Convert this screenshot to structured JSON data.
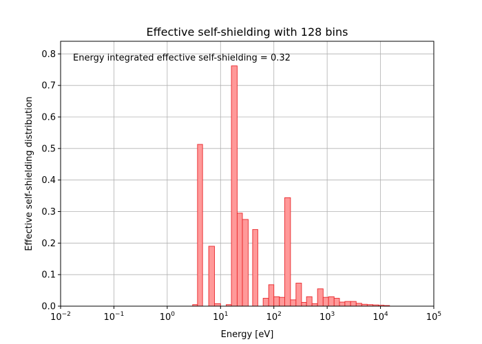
{
  "chart_data": {
    "type": "bar",
    "title": "Effective self-shielding with 128 bins",
    "xlabel": "Energy [eV]",
    "ylabel": "Effective self-shielding distribution",
    "annotation": "Energy integrated effective self-shielding = 0.32",
    "x_scale": "log",
    "xlim": [
      0.01,
      100000
    ],
    "ylim": [
      0,
      0.84
    ],
    "grid": true,
    "x_ticks": [
      {
        "value": 0.01,
        "base": "10",
        "exp": "−2"
      },
      {
        "value": 0.1,
        "base": "10",
        "exp": "−1"
      },
      {
        "value": 1,
        "base": "10",
        "exp": "0"
      },
      {
        "value": 10,
        "base": "10",
        "exp": "1"
      },
      {
        "value": 100,
        "base": "10",
        "exp": "2"
      },
      {
        "value": 1000,
        "base": "10",
        "exp": "3"
      },
      {
        "value": 10000,
        "base": "10",
        "exp": "4"
      },
      {
        "value": 100000,
        "base": "10",
        "exp": "5"
      }
    ],
    "y_ticks": [
      {
        "value": 0.0,
        "label": "0.0"
      },
      {
        "value": 0.1,
        "label": "0.1"
      },
      {
        "value": 0.2,
        "label": "0.2"
      },
      {
        "value": 0.3,
        "label": "0.3"
      },
      {
        "value": 0.4,
        "label": "0.4"
      },
      {
        "value": 0.5,
        "label": "0.5"
      },
      {
        "value": 0.6,
        "label": "0.6"
      },
      {
        "value": 0.7,
        "label": "0.7"
      },
      {
        "value": 0.8,
        "label": "0.8"
      }
    ],
    "bar_fill": "#ff9999",
    "bar_edge": "#e8262a",
    "bins": [
      {
        "lo": 0.01,
        "hi": 3.0,
        "v": 0.0
      },
      {
        "lo": 3.0,
        "hi": 3.7,
        "v": 0.005
      },
      {
        "lo": 3.7,
        "hi": 4.6,
        "v": 0.513
      },
      {
        "lo": 4.6,
        "hi": 6.0,
        "v": 0.0
      },
      {
        "lo": 6.0,
        "hi": 7.7,
        "v": 0.19
      },
      {
        "lo": 7.7,
        "hi": 10.0,
        "v": 0.008
      },
      {
        "lo": 10.0,
        "hi": 12.8,
        "v": 0.0
      },
      {
        "lo": 12.8,
        "hi": 16.0,
        "v": 0.005
      },
      {
        "lo": 16.0,
        "hi": 20.5,
        "v": 0.762
      },
      {
        "lo": 20.5,
        "hi": 25.7,
        "v": 0.295
      },
      {
        "lo": 25.7,
        "hi": 33.0,
        "v": 0.275
      },
      {
        "lo": 33.0,
        "hi": 40.0,
        "v": 0.0
      },
      {
        "lo": 40.0,
        "hi": 50.0,
        "v": 0.243
      },
      {
        "lo": 50.0,
        "hi": 63.0,
        "v": 0.0
      },
      {
        "lo": 63.0,
        "hi": 80.0,
        "v": 0.025
      },
      {
        "lo": 80.0,
        "hi": 100.0,
        "v": 0.068
      },
      {
        "lo": 100.0,
        "hi": 127.0,
        "v": 0.03
      },
      {
        "lo": 127.0,
        "hi": 160.0,
        "v": 0.028
      },
      {
        "lo": 160.0,
        "hi": 205.0,
        "v": 0.344
      },
      {
        "lo": 205.0,
        "hi": 260.0,
        "v": 0.02
      },
      {
        "lo": 260.0,
        "hi": 330.0,
        "v": 0.073
      },
      {
        "lo": 330.0,
        "hi": 410.0,
        "v": 0.012
      },
      {
        "lo": 410.0,
        "hi": 520.0,
        "v": 0.03
      },
      {
        "lo": 520.0,
        "hi": 660.0,
        "v": 0.008
      },
      {
        "lo": 660.0,
        "hi": 840.0,
        "v": 0.055
      },
      {
        "lo": 840.0,
        "hi": 1060.0,
        "v": 0.028
      },
      {
        "lo": 1060.0,
        "hi": 1350.0,
        "v": 0.03
      },
      {
        "lo": 1350.0,
        "hi": 1700.0,
        "v": 0.025
      },
      {
        "lo": 1700.0,
        "hi": 2150.0,
        "v": 0.013
      },
      {
        "lo": 2150.0,
        "hi": 2750.0,
        "v": 0.015
      },
      {
        "lo": 2750.0,
        "hi": 3500.0,
        "v": 0.015
      },
      {
        "lo": 3500.0,
        "hi": 4450.0,
        "v": 0.009
      },
      {
        "lo": 4450.0,
        "hi": 5650.0,
        "v": 0.006
      },
      {
        "lo": 5650.0,
        "hi": 7200.0,
        "v": 0.005
      },
      {
        "lo": 7200.0,
        "hi": 9150.0,
        "v": 0.004
      },
      {
        "lo": 9150.0,
        "hi": 11600.0,
        "v": 0.003
      },
      {
        "lo": 11600.0,
        "hi": 14800.0,
        "v": 0.002
      },
      {
        "lo": 14800.0,
        "hi": 100000.0,
        "v": 0.0
      }
    ]
  }
}
